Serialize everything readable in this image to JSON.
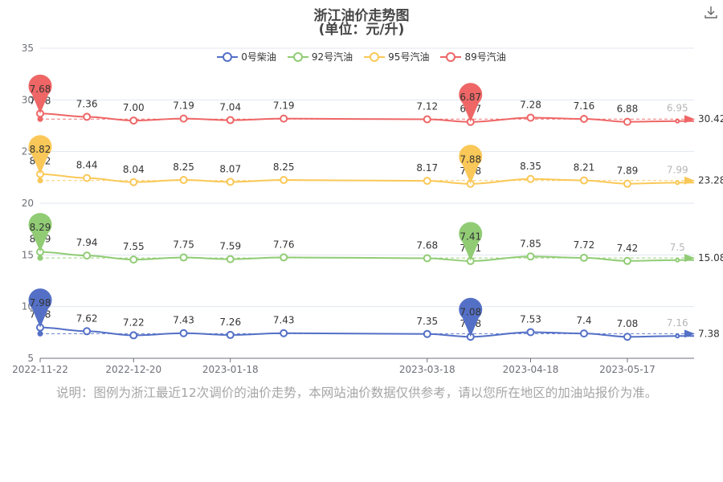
{
  "title": "浙江油价走势图",
  "subtitle": "(单位：元/升)",
  "note": "说明：图例为浙江最近12次调价的油价走势，本网站油价数据仅供参考，请以您所在地区的加油站报价为准。",
  "chart_data": {
    "type": "line",
    "x_dates": [
      "2022-11-22",
      "2022-12-06",
      "2022-12-20",
      "2023-01-04",
      "2023-01-18",
      "2023-02-03",
      "2023-03-18",
      "2023-03-31",
      "2023-04-18",
      "2023-05-04",
      "2023-05-17",
      "2023-06-01"
    ],
    "x_tick_labels": [
      "2022-11-22",
      "2022-12-20",
      "2023-01-18",
      "2023-03-18",
      "2023-04-18",
      "2023-05-17"
    ],
    "y_ticks": [
      5,
      10,
      15,
      20,
      25,
      30,
      35
    ],
    "ylim": [
      5,
      35
    ],
    "legend_position": "top-center",
    "series": [
      {
        "name": "0号柴油",
        "color": "#5470c6",
        "offset": 0,
        "values": [
          7.98,
          7.62,
          7.22,
          7.43,
          7.26,
          7.43,
          7.35,
          7.08,
          7.53,
          7.4,
          7.08,
          7.16
        ],
        "labels": [
          "7.98",
          "7.62",
          "7.22",
          "7.43",
          "7.26",
          "7.43",
          "7.35",
          "7.08",
          "7.53",
          "7.4",
          "7.08",
          "7.16"
        ],
        "max": "7.98",
        "min": "7.08",
        "average": "7.38"
      },
      {
        "name": "92号汽油",
        "color": "#91cc75",
        "offset": 7,
        "values": [
          8.29,
          7.94,
          7.55,
          7.75,
          7.59,
          7.76,
          7.68,
          7.41,
          7.85,
          7.72,
          7.42,
          7.5
        ],
        "labels": [
          "8.29",
          "7.94",
          "7.55",
          "7.75",
          "7.59",
          "7.76",
          "7.68",
          "7.41",
          "7.85",
          "7.72",
          "7.42",
          "7.5"
        ],
        "max": "8.29",
        "min": "7.41",
        "average": "15.08"
      },
      {
        "name": "95号汽油",
        "color": "#fac858",
        "offset": 14,
        "values": [
          8.82,
          8.44,
          8.04,
          8.25,
          8.07,
          8.25,
          8.17,
          7.88,
          8.35,
          8.21,
          7.89,
          7.99
        ],
        "labels": [
          "8.82",
          "8.44",
          "8.04",
          "8.25",
          "8.07",
          "8.25",
          "8.17",
          "7.88",
          "8.35",
          "8.21",
          "7.89",
          "7.99"
        ],
        "max": "8.82",
        "min": "7.88",
        "average": "23.28"
      },
      {
        "name": "89号汽油",
        "color": "#ee6666",
        "offset": 21,
        "values": [
          7.68,
          7.36,
          7.0,
          7.19,
          7.04,
          7.19,
          7.12,
          6.87,
          7.28,
          7.16,
          6.88,
          6.95
        ],
        "labels": [
          "7.68",
          "7.36",
          "7.00",
          "7.19",
          "7.04",
          "7.19",
          "7.12",
          "6.87",
          "7.28",
          "7.16",
          "6.88",
          "6.95"
        ],
        "max": "7.68",
        "min": "6.87",
        "average": "30.42"
      }
    ]
  }
}
